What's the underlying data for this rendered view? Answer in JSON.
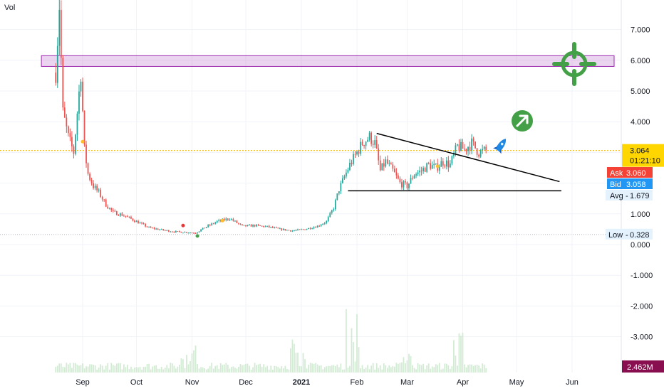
{
  "header": {
    "indicator_label": "Vol"
  },
  "chart_data": {
    "type": "candlestick",
    "y_axis": {
      "ticks": [
        "7.000",
        "6.000",
        "5.000",
        "4.000",
        "3.000",
        "2.000",
        "1.000",
        "0.000",
        "-1.000",
        "-2.000",
        "-3.000"
      ],
      "tick_values": [
        7,
        6,
        5,
        4,
        3,
        2,
        1,
        0,
        -1,
        -2,
        -3
      ],
      "range": [
        -4,
        8
      ]
    },
    "x_axis": {
      "labels": [
        "Sep",
        "Oct",
        "Nov",
        "Dec",
        "2021",
        "Feb",
        "Mar",
        "Apr",
        "May",
        "Jun"
      ],
      "dates": [
        "2020-09-01",
        "2020-10-01",
        "2020-11-01",
        "2020-12-01",
        "2021-01-01",
        "2021-02-01",
        "2021-03-01",
        "2021-04-01",
        "2021-05-01",
        "2021-06-01"
      ]
    },
    "price_series": {
      "dates": [
        "2020-08-17",
        "2020-08-19",
        "2020-08-21",
        "2020-08-24",
        "2020-08-27",
        "2020-08-31",
        "2020-09-02",
        "2020-09-04",
        "2020-09-07",
        "2020-09-10",
        "2020-09-14",
        "2020-09-18",
        "2020-09-24",
        "2020-10-01",
        "2020-10-08",
        "2020-10-15",
        "2020-10-22",
        "2020-10-29",
        "2020-11-03",
        "2020-11-08",
        "2020-11-15",
        "2020-11-22",
        "2020-11-29",
        "2020-12-06",
        "2020-12-13",
        "2020-12-20",
        "2020-12-27",
        "2021-01-03",
        "2021-01-10",
        "2021-01-15",
        "2021-01-19",
        "2021-01-22",
        "2021-01-25",
        "2021-01-28",
        "2021-02-01",
        "2021-02-04",
        "2021-02-08",
        "2021-02-11",
        "2021-02-14",
        "2021-02-17",
        "2021-02-21",
        "2021-02-25",
        "2021-03-01",
        "2021-03-05",
        "2021-03-09",
        "2021-03-13",
        "2021-03-17",
        "2021-03-21",
        "2021-03-25",
        "2021-03-29",
        "2021-04-02",
        "2021-04-06",
        "2021-04-10",
        "2021-04-14"
      ],
      "close": [
        5.6,
        7.8,
        4.3,
        3.5,
        3.0,
        5.6,
        3.1,
        2.3,
        1.9,
        1.7,
        1.3,
        1.05,
        0.95,
        0.75,
        0.55,
        0.48,
        0.42,
        0.4,
        0.38,
        0.55,
        0.75,
        0.85,
        0.6,
        0.62,
        0.58,
        0.5,
        0.45,
        0.5,
        0.6,
        0.75,
        1.2,
        1.8,
        2.2,
        2.6,
        3.0,
        3.3,
        3.5,
        3.3,
        2.4,
        2.7,
        2.4,
        2.0,
        1.9,
        2.3,
        2.4,
        2.6,
        2.5,
        2.7,
        2.6,
        3.2,
        3.1,
        3.3,
        3.0,
        3.064
      ]
    },
    "volume_series": {
      "last_value_label": "2.462M"
    },
    "price_labels": {
      "last": {
        "value": "3.064",
        "countdown": "01:21:10",
        "color": "#ffd600"
      },
      "ask": {
        "label": "Ask",
        "value": "3.060",
        "color": "#f44336"
      },
      "bid": {
        "label": "Bid",
        "value": "3.058",
        "color": "#2196f3"
      },
      "avg": {
        "label": "Avg",
        "value": "1.679"
      },
      "low": {
        "label": "Low",
        "value": "0.328"
      },
      "volume_last": {
        "value": "2.462M",
        "color": "#880e4f"
      }
    },
    "drawings": {
      "resistance_zone": {
        "y_low": 5.8,
        "y_high": 6.15,
        "x_start": "2020-08-09",
        "color": "#9c27b0"
      },
      "descending_trendline": {
        "from": [
          "2021-02-12",
          3.62
        ],
        "to": [
          "2021-05-25",
          2.05
        ]
      },
      "support_line": {
        "from": [
          "2021-01-27",
          1.75
        ],
        "to": [
          "2021-05-26",
          1.75
        ]
      },
      "last_price_line": {
        "y": 3.064,
        "color": "#ffc107"
      },
      "low_line": {
        "y": 0.328
      }
    },
    "markers": {
      "target_icon": {
        "color": "#43a047"
      },
      "arrow_up_right_icon": {
        "color": "#43a047"
      },
      "rocket_icon": {
        "color": "#1e88e5"
      }
    },
    "colors": {
      "up": "#26a69a",
      "down": "#ef5350",
      "volume": "#c8e6c9"
    }
  }
}
